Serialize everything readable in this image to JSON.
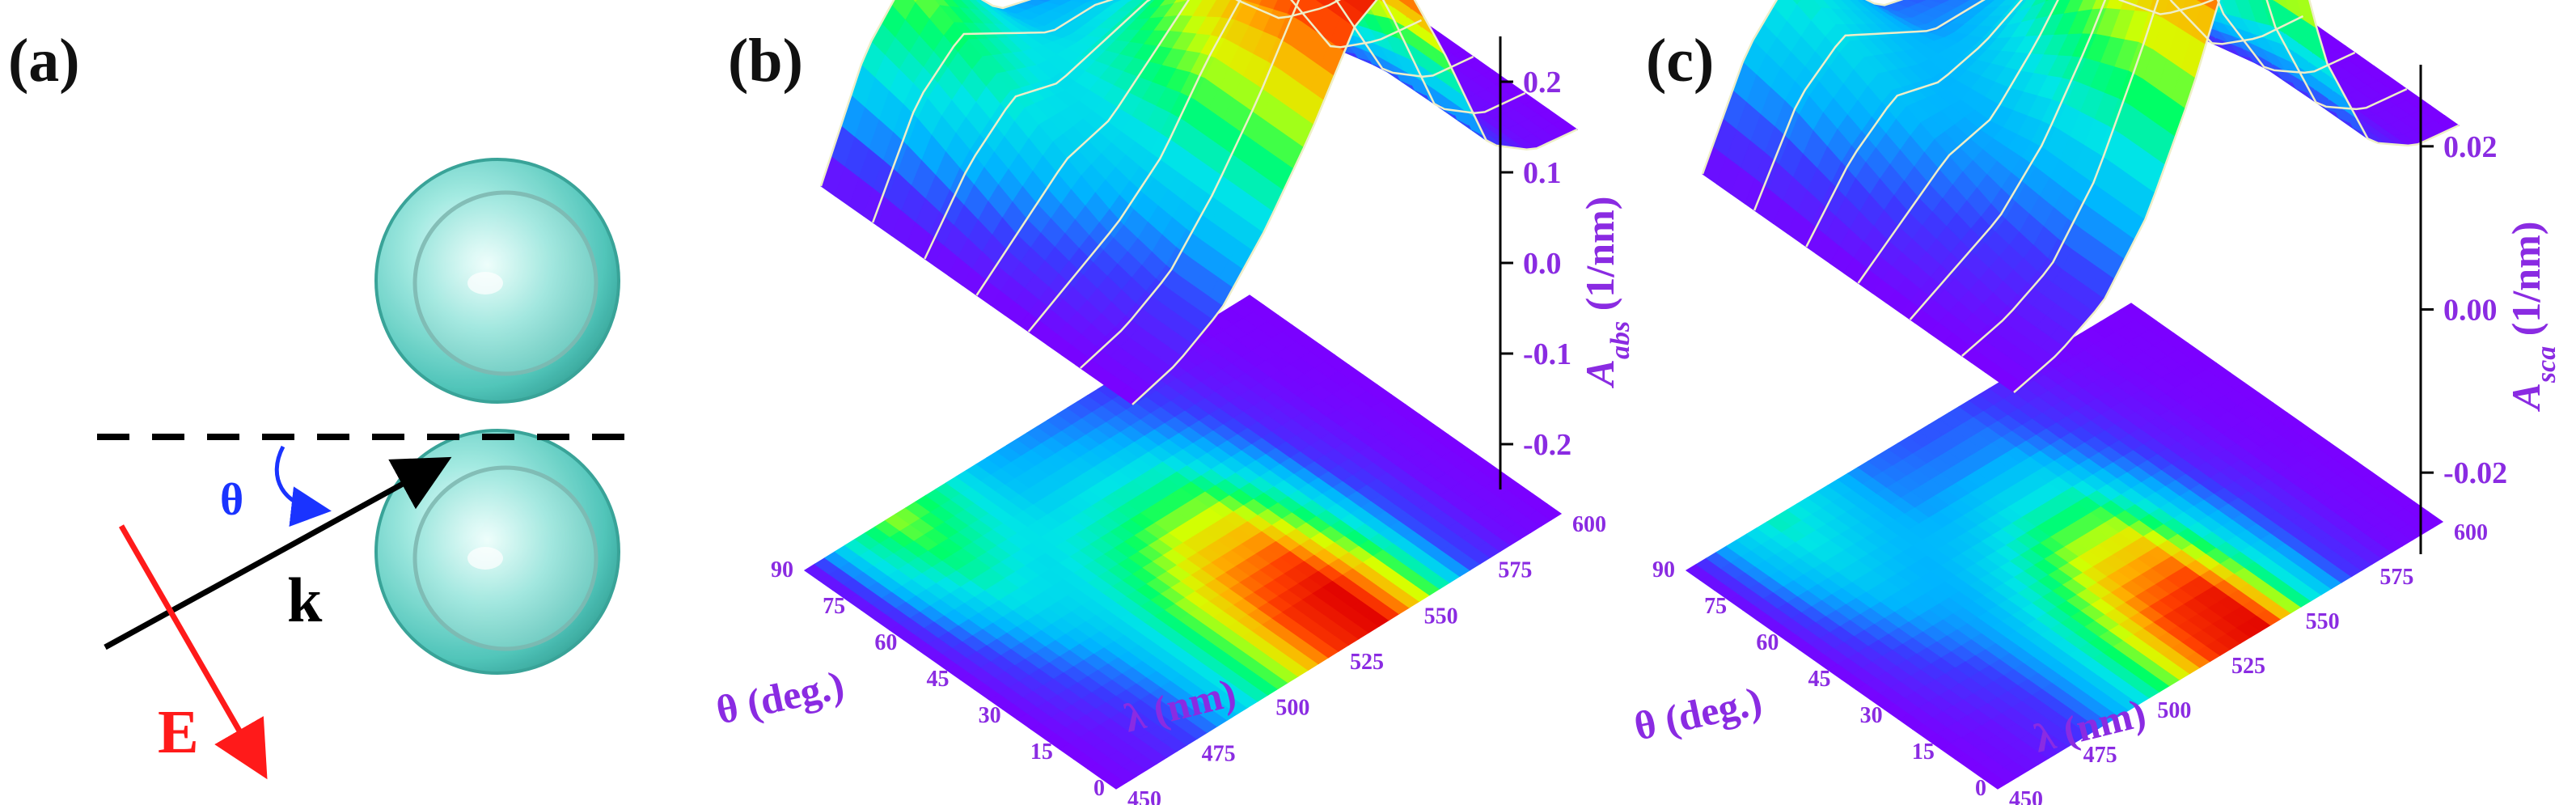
{
  "panels": {
    "a": {
      "label": "(a)",
      "theta_symbol": "θ",
      "k_symbol": "k",
      "e_symbol": "E",
      "sphere_color": "#5fd3c8",
      "sphere_rim": "#2f9f93",
      "k_color": "#000000",
      "e_color": "#ff1a1a",
      "theta_color": "#1a33ff"
    },
    "b": {
      "label": "(b)"
    },
    "c": {
      "label": "(c)"
    }
  },
  "chart_data": [
    {
      "type": "surface",
      "panel": "b",
      "xlabel": "λ (nm)",
      "ylabel": "θ (deg.)",
      "zlabel": "A_abs (1/nm)",
      "x_ticks": [
        "450",
        "475",
        "500",
        "525",
        "550",
        "575",
        "600"
      ],
      "y_ticks": [
        "0",
        "15",
        "30",
        "45",
        "60",
        "75",
        "90"
      ],
      "z_ticks": [
        "-0.2",
        "-0.1",
        "0.0",
        "0.1",
        "0.2"
      ],
      "xlim": [
        450,
        600
      ],
      "ylim": [
        0,
        90
      ],
      "zlim": [
        -0.25,
        0.25
      ],
      "theta": [
        0,
        15,
        30,
        45,
        60,
        75,
        90
      ],
      "lambda": [
        450,
        465,
        480,
        495,
        510,
        525,
        540,
        555,
        570,
        585,
        600
      ],
      "z": [
        [
          0.0,
          0.01,
          0.03,
          0.07,
          0.12,
          0.18,
          0.2,
          0.12,
          0.03,
          0.005,
          0.0
        ],
        [
          0.0,
          0.01,
          0.03,
          0.07,
          0.12,
          0.18,
          0.2,
          0.12,
          0.03,
          0.005,
          0.0
        ],
        [
          0.0,
          0.02,
          0.04,
          0.07,
          0.12,
          0.16,
          0.17,
          0.1,
          0.03,
          0.005,
          0.0
        ],
        [
          0.0,
          0.03,
          0.06,
          0.07,
          0.1,
          0.13,
          0.13,
          0.08,
          0.02,
          0.005,
          0.0
        ],
        [
          0.0,
          0.05,
          0.08,
          0.07,
          0.08,
          0.09,
          0.09,
          0.05,
          0.015,
          0.003,
          0.0
        ],
        [
          0.0,
          0.07,
          0.1,
          0.08,
          0.06,
          0.06,
          0.05,
          0.03,
          0.01,
          0.002,
          0.0
        ],
        [
          0.0,
          0.08,
          0.12,
          0.09,
          0.05,
          0.04,
          0.03,
          0.02,
          0.005,
          0.001,
          0.0
        ]
      ],
      "colormap": [
        "#7b00ff",
        "#3a3aff",
        "#00b4ff",
        "#00e6e6",
        "#00ff66",
        "#d6ff00",
        "#ffb000",
        "#ff4000",
        "#e00000"
      ]
    },
    {
      "type": "surface",
      "panel": "c",
      "xlabel": "λ (nm)",
      "ylabel": "θ (deg.)",
      "zlabel": "A_sca (1/nm)",
      "x_ticks": [
        "450",
        "475",
        "500",
        "525",
        "550",
        "575",
        "600"
      ],
      "y_ticks": [
        "0",
        "15",
        "30",
        "45",
        "60",
        "75",
        "90"
      ],
      "z_ticks": [
        "-0.02",
        "0.00",
        "0.02"
      ],
      "xlim": [
        450,
        600
      ],
      "ylim": [
        0,
        90
      ],
      "zlim": [
        -0.03,
        0.03
      ],
      "theta": [
        0,
        15,
        30,
        45,
        60,
        75,
        90
      ],
      "lambda": [
        450,
        465,
        480,
        495,
        510,
        525,
        540,
        555,
        570,
        585,
        600
      ],
      "z": [
        [
          0.0,
          0.001,
          0.003,
          0.008,
          0.016,
          0.026,
          0.028,
          0.012,
          0.003,
          0.0005,
          0.0
        ],
        [
          0.0,
          0.001,
          0.003,
          0.008,
          0.016,
          0.025,
          0.027,
          0.012,
          0.003,
          0.0005,
          0.0
        ],
        [
          0.0,
          0.002,
          0.004,
          0.008,
          0.014,
          0.021,
          0.022,
          0.01,
          0.003,
          0.0005,
          0.0
        ],
        [
          0.0,
          0.003,
          0.006,
          0.007,
          0.011,
          0.016,
          0.016,
          0.008,
          0.002,
          0.0004,
          0.0
        ],
        [
          0.0,
          0.005,
          0.008,
          0.007,
          0.008,
          0.01,
          0.01,
          0.005,
          0.0015,
          0.0003,
          0.0
        ],
        [
          0.0,
          0.007,
          0.01,
          0.008,
          0.006,
          0.006,
          0.006,
          0.003,
          0.001,
          0.0002,
          0.0
        ],
        [
          0.0,
          0.008,
          0.012,
          0.009,
          0.005,
          0.004,
          0.004,
          0.002,
          0.0005,
          0.0001,
          0.0
        ]
      ],
      "colormap": [
        "#7b00ff",
        "#3a3aff",
        "#00b4ff",
        "#00e6e6",
        "#00ff66",
        "#d6ff00",
        "#ffb000",
        "#ff4000",
        "#e00000"
      ]
    }
  ]
}
